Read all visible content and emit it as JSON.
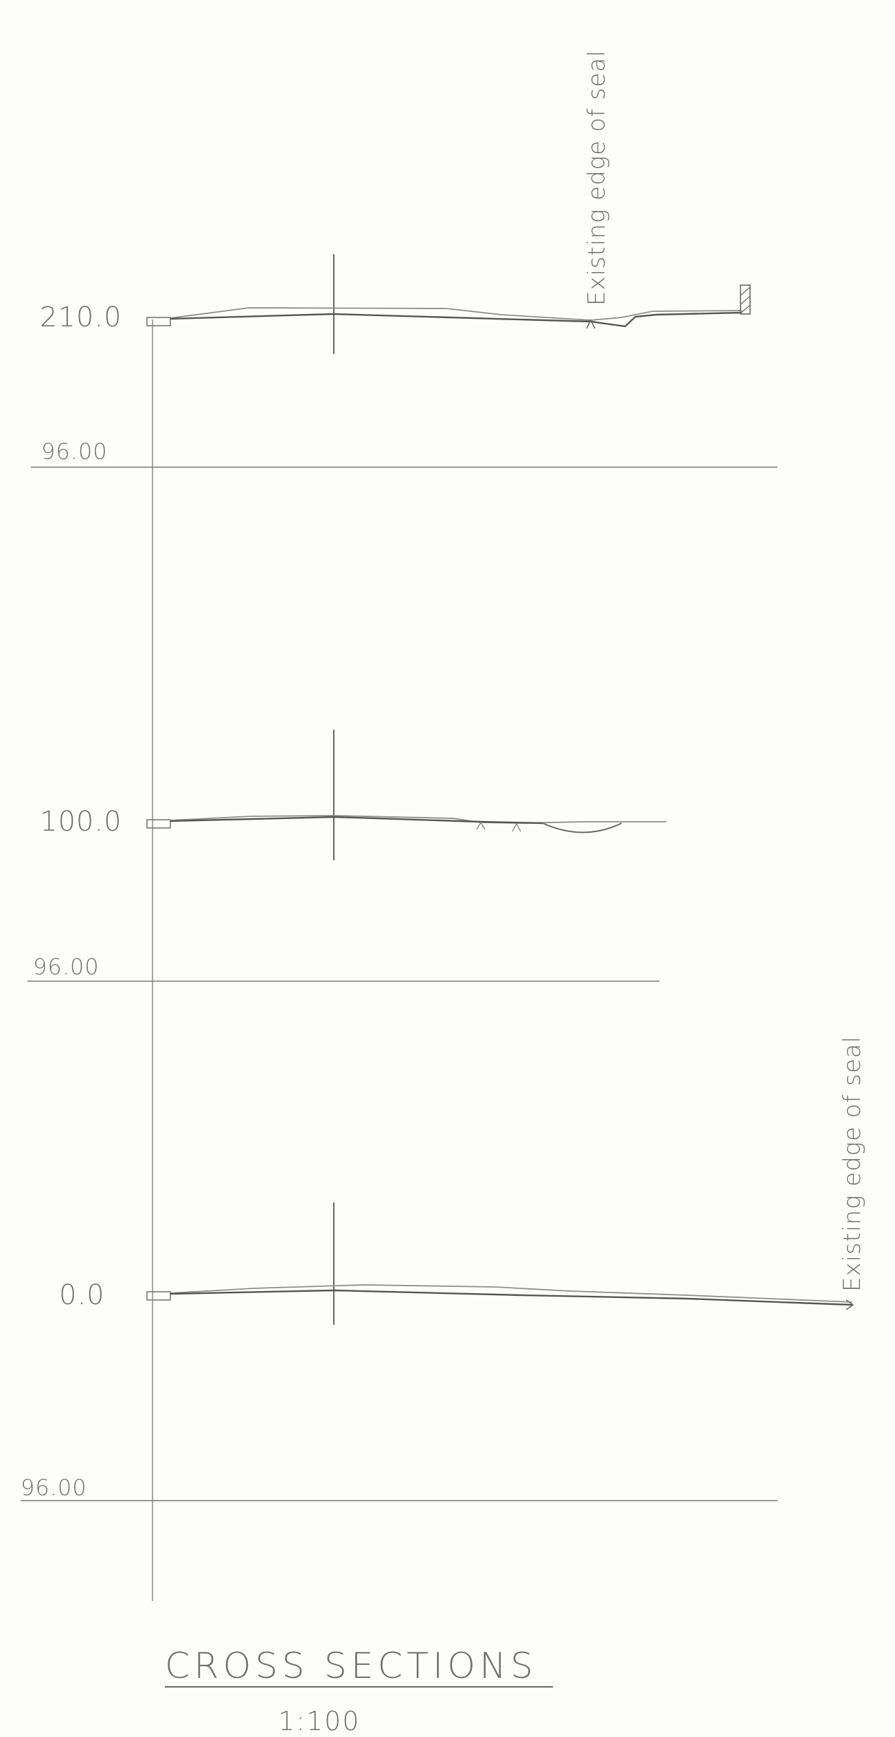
{
  "sections": [
    {
      "station": "210.0",
      "datum": "96.00"
    },
    {
      "station": "100.0",
      "datum": "96.00"
    },
    {
      "station": "0.0",
      "datum": "96.00"
    }
  ],
  "annotations": {
    "top_note": "Existing edge of seal",
    "bottom_note": "Existing edge of seal"
  },
  "title": "CROSS SECTIONS",
  "scale": "1:100",
  "colors": {
    "paper": "#fdfdfb",
    "pencil": "#6f6f6f",
    "pencil_dark": "#555555",
    "pencil_light": "#9a9a9a"
  }
}
